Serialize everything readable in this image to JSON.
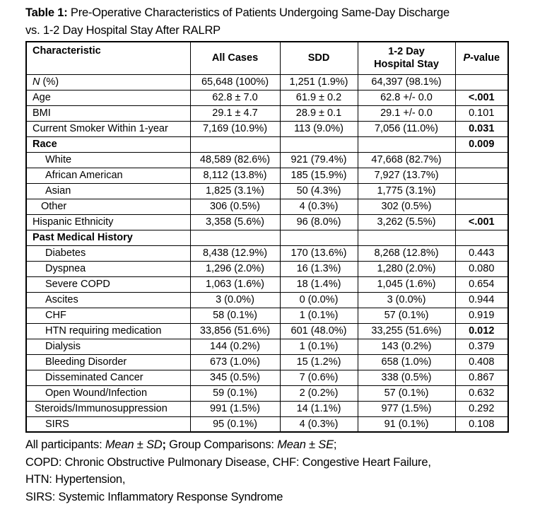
{
  "title": {
    "prefix": "Table 1:",
    "line1_rest": " Pre-Operative Characteristics of Patients Undergoing Same-Day Discharge",
    "line2": "vs. 1-2 Day Hospital Stay After RALRP"
  },
  "table": {
    "header": {
      "characteristic": "Characteristic",
      "all_cases": "All Cases",
      "sdd": "SDD",
      "stay_line1": "1-2 Day",
      "stay_line2": "Hospital Stay",
      "p_italic": "P",
      "p_rest": "-value"
    },
    "rows": [
      {
        "label": "N (%)",
        "italic_prefix": "N",
        "label_rest": " (%)",
        "indent": 0,
        "bold": false,
        "all": "65,648 (100%)",
        "sdd": "1,251 (1.9%)",
        "stay": "64,397 (98.1%)",
        "p": "",
        "p_bold": false
      },
      {
        "label": "Age",
        "indent": 0,
        "bold": false,
        "all": "62.8 ± 7.0",
        "sdd": "61.9 ± 0.2",
        "stay": "62.8 +/- 0.0",
        "p": "<.001",
        "p_bold": true
      },
      {
        "label": "BMI",
        "indent": 0,
        "bold": false,
        "all": "29.1 ± 4.7",
        "sdd": "28.9 ± 0.1",
        "stay": "29.1 +/- 0.0",
        "p": "0.101",
        "p_bold": false
      },
      {
        "label": "Current Smoker Within 1-year",
        "indent": 0,
        "bold": false,
        "all": "7,169 (10.9%)",
        "sdd": "113 (9.0%)",
        "stay": "7,056 (11.0%)",
        "p": "0.031",
        "p_bold": true
      },
      {
        "label": "Race",
        "indent": 0,
        "bold": true,
        "all": "",
        "sdd": "",
        "stay": "",
        "p": "0.009",
        "p_bold": true
      },
      {
        "label": "White",
        "indent": 1,
        "bold": false,
        "all": "48,589 (82.6%)",
        "sdd": "921 (79.4%)",
        "stay": "47,668 (82.7%)",
        "p": "",
        "p_bold": false
      },
      {
        "label": "African American",
        "indent": 1,
        "bold": false,
        "all": "8,112 (13.8%)",
        "sdd": "185 (15.9%)",
        "stay": "7,927 (13.7%)",
        "p": "",
        "p_bold": false
      },
      {
        "label": "Asian",
        "indent": 1,
        "bold": false,
        "all": "1,825 (3.1%)",
        "sdd": "50 (4.3%)",
        "stay": "1,775 (3.1%)",
        "p": "",
        "p_bold": false
      },
      {
        "label": "Other",
        "indent": 2,
        "bold": false,
        "all": "306 (0.5%)",
        "sdd": "4 (0.3%)",
        "stay": "302 (0.5%)",
        "p": "",
        "p_bold": false
      },
      {
        "label": "Hispanic Ethnicity",
        "indent": 0,
        "bold": false,
        "all": "3,358 (5.6%)",
        "sdd": "96 (8.0%)",
        "stay": "3,262 (5.5%)",
        "p": "<.001",
        "p_bold": true
      },
      {
        "label": "Past Medical History",
        "indent": 0,
        "bold": true,
        "all": "",
        "sdd": "",
        "stay": "",
        "p": "",
        "p_bold": false
      },
      {
        "label": "Diabetes",
        "indent": 1,
        "bold": false,
        "all": "8,438 (12.9%)",
        "sdd": "170 (13.6%)",
        "stay": "8,268 (12.8%)",
        "p": "0.443",
        "p_bold": false
      },
      {
        "label": "Dyspnea",
        "indent": 1,
        "bold": false,
        "all": "1,296 (2.0%)",
        "sdd": "16 (1.3%)",
        "stay": "1,280 (2.0%)",
        "p": "0.080",
        "p_bold": false
      },
      {
        "label": "Severe COPD",
        "indent": 1,
        "bold": false,
        "all": "1,063 (1.6%)",
        "sdd": "18 (1.4%)",
        "stay": "1,045 (1.6%)",
        "p": "0.654",
        "p_bold": false
      },
      {
        "label": "Ascites",
        "indent": 1,
        "bold": false,
        "all": "3 (0.0%)",
        "sdd": "0 (0.0%)",
        "stay": "3 (0.0%)",
        "p": "0.944",
        "p_bold": false
      },
      {
        "label": "CHF",
        "indent": 1,
        "bold": false,
        "all": "58 (0.1%)",
        "sdd": "1 (0.1%)",
        "stay": "57 (0.1%)",
        "p": "0.919",
        "p_bold": false
      },
      {
        "label": "HTN requiring medication",
        "indent": 1,
        "bold": false,
        "all": "33,856 (51.6%)",
        "sdd": "601 (48.0%)",
        "stay": "33,255 (51.6%)",
        "p": "0.012",
        "p_bold": true
      },
      {
        "label": "Dialysis",
        "indent": 1,
        "bold": false,
        "all": "144 (0.2%)",
        "sdd": "1 (0.1%)",
        "stay": "143 (0.2%)",
        "p": "0.379",
        "p_bold": false
      },
      {
        "label": "Bleeding Disorder",
        "indent": 1,
        "bold": false,
        "all": "673 (1.0%)",
        "sdd": "15 (1.2%)",
        "stay": "658 (1.0%)",
        "p": "0.408",
        "p_bold": false
      },
      {
        "label": "Disseminated Cancer",
        "indent": 1,
        "bold": false,
        "all": "345 (0.5%)",
        "sdd": "7 (0.6%)",
        "stay": "338 (0.5%)",
        "p": "0.867",
        "p_bold": false
      },
      {
        "label": "Open Wound/Infection",
        "indent": 1,
        "bold": false,
        "all": "59 (0.1%)",
        "sdd": "2 (0.2%)",
        "stay": "57 (0.1%)",
        "p": "0.632",
        "p_bold": false
      },
      {
        "label": "Steroids/Immunosuppression",
        "indent": 3,
        "bold": false,
        "all": "991 (1.5%)",
        "sdd": "14 (1.1%)",
        "stay": "977 (1.5%)",
        "p": "0.292",
        "p_bold": false
      },
      {
        "label": "SIRS",
        "indent": 1,
        "bold": false,
        "all": "95 (0.1%)",
        "sdd": "4 (0.3%)",
        "stay": "91 (0.1%)",
        "p": "0.108",
        "p_bold": false
      }
    ]
  },
  "footnotes": {
    "line1": {
      "p1": "All participants: ",
      "p2": "Mean ± SD",
      "p3": ";",
      "p4": " Group Comparisons: ",
      "p5": "Mean ± SE",
      "p6": ";"
    },
    "line2": "COPD: Chronic Obstructive Pulmonary Disease, CHF: Congestive Heart Failure,",
    "line3": "HTN: Hypertension,",
    "line4": "SIRS: Systemic Inflammatory Response Syndrome"
  }
}
